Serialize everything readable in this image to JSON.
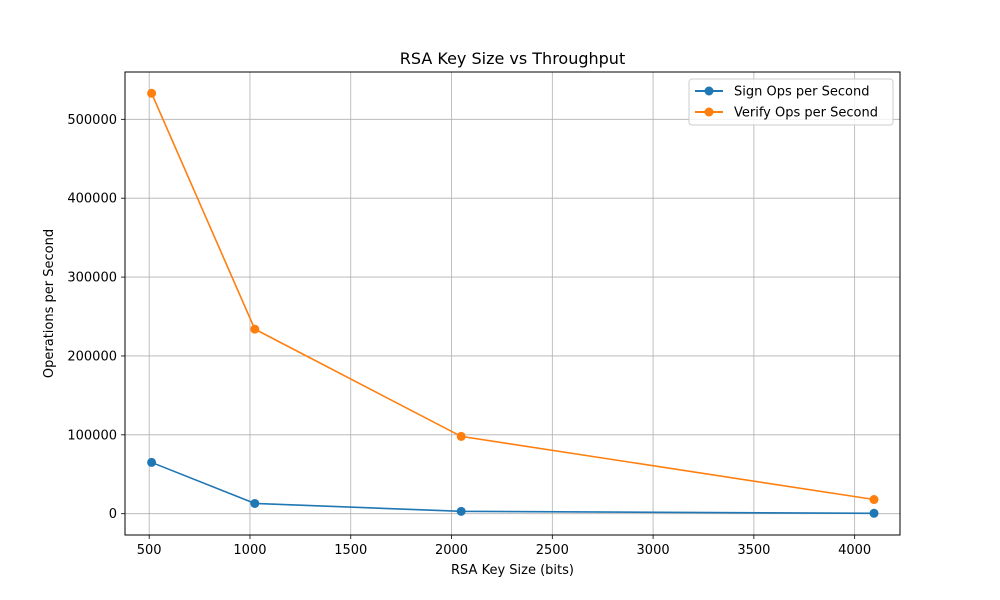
{
  "chart_data": {
    "type": "line",
    "title": "RSA Key Size vs Throughput",
    "xlabel": "RSA Key Size (bits)",
    "ylabel": "Operations per Second",
    "xlim": [
      380,
      4225
    ],
    "ylim": [
      -27000,
      560000
    ],
    "xticks": [
      500,
      1000,
      1500,
      2000,
      2500,
      3000,
      3500,
      4000
    ],
    "yticks": [
      0,
      100000,
      200000,
      300000,
      400000,
      500000
    ],
    "grid": true,
    "legend_position": "top-right",
    "x": [
      512,
      1024,
      2048,
      4096
    ],
    "series": [
      {
        "name": "Sign Ops per Second",
        "color": "#1f77b4",
        "values": [
          65000,
          13000,
          3000,
          500
        ]
      },
      {
        "name": "Verify Ops per Second",
        "color": "#ff7f0e",
        "values": [
          533000,
          234000,
          98000,
          18000
        ]
      }
    ]
  }
}
